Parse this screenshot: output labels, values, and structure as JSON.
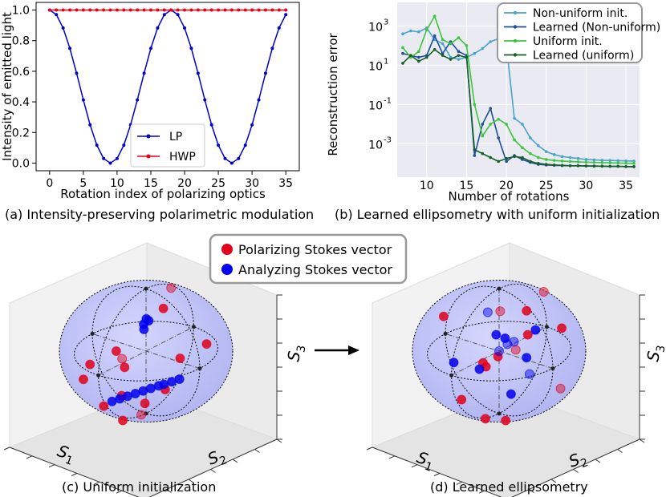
{
  "chart_data": [
    {
      "type": "line",
      "caption": "(a) Intensity-preserving polarimetric modulation",
      "xlabel": "Rotation index of polarizing optics",
      "ylabel": "Intensity of emitted light",
      "xlim": [
        -2,
        37
      ],
      "ylim": [
        -0.05,
        1.05
      ],
      "xticks": [
        0,
        5,
        10,
        15,
        20,
        25,
        30,
        35
      ],
      "yticks": [
        0.0,
        0.2,
        0.4,
        0.6,
        0.8,
        1.0
      ],
      "ytick_labels": [
        "0.0",
        "0.2",
        "0.4",
        "0.6",
        "0.8",
        "1.0"
      ],
      "legend_position": "bottom-center",
      "x": [
        0,
        1,
        2,
        3,
        4,
        5,
        6,
        7,
        8,
        9,
        10,
        11,
        12,
        13,
        14,
        15,
        16,
        17,
        18,
        19,
        20,
        21,
        22,
        23,
        24,
        25,
        26,
        27,
        28,
        29,
        30,
        31,
        32,
        33,
        34,
        35
      ],
      "series": [
        {
          "name": "LP",
          "color": "#0000cc",
          "values": [
            1.0,
            0.97,
            0.883,
            0.75,
            0.587,
            0.413,
            0.25,
            0.117,
            0.03,
            0.0,
            0.03,
            0.117,
            0.25,
            0.413,
            0.587,
            0.75,
            0.883,
            0.97,
            1.0,
            0.97,
            0.883,
            0.75,
            0.587,
            0.413,
            0.25,
            0.117,
            0.03,
            0.0,
            0.03,
            0.117,
            0.25,
            0.413,
            0.587,
            0.75,
            0.883,
            0.97
          ]
        },
        {
          "name": "HWP",
          "color": "#e8001c",
          "values": [
            1,
            1,
            1,
            1,
            1,
            1,
            1,
            1,
            1,
            1,
            1,
            1,
            1,
            1,
            1,
            1,
            1,
            1,
            1,
            1,
            1,
            1,
            1,
            1,
            1,
            1,
            1,
            1,
            1,
            1,
            1,
            1,
            1,
            1,
            1,
            1
          ]
        }
      ]
    },
    {
      "type": "line",
      "caption": "(b) Learned ellipsometry with uniform initialization",
      "xlabel": "Number of rotations",
      "ylabel": "Reconstruction error",
      "yscale": "log",
      "xlim": [
        6.3,
        36.7
      ],
      "ylim_log10": [
        -4.7,
        4.2
      ],
      "xticks": [
        10,
        15,
        20,
        25,
        30,
        35
      ],
      "yticks_log10": [
        -3,
        -1,
        1,
        3
      ],
      "ytick_labels": [
        "10",
        "10",
        "10",
        "10"
      ],
      "ytick_exponents": [
        "-3",
        "-1",
        "1",
        "3"
      ],
      "grid": true,
      "background": "#eaeaf2",
      "legend_position": "top-right",
      "x": [
        7,
        8,
        9,
        10,
        11,
        12,
        13,
        14,
        15,
        16,
        17,
        18,
        19,
        20,
        21,
        22,
        23,
        24,
        25,
        26,
        27,
        28,
        29,
        30,
        31,
        32,
        33,
        34,
        35,
        36
      ],
      "series": [
        {
          "name": "Non-uniform init.",
          "color": "#4aa3c8",
          "log10_values": [
            2.6,
            2.75,
            2.7,
            2.9,
            2.3,
            2.1,
            1.4,
            1.3,
            1.4,
            1.6,
            1.85,
            2.2,
            2.35,
            2.0,
            -1.7,
            -2.0,
            -2.7,
            -3.1,
            -3.4,
            -3.55,
            -3.65,
            -3.7,
            -3.75,
            -3.8,
            -3.82,
            -3.84,
            -3.85,
            -3.86,
            -3.87,
            -3.88
          ]
        },
        {
          "name": "Learned (Non-uniform)",
          "color": "#1f4e9a",
          "log10_values": [
            1.6,
            1.5,
            1.4,
            1.5,
            2.5,
            1.6,
            2.2,
            1.7,
            1.5,
            -3.6,
            -2.0,
            -1.2,
            -2.7,
            -3.9,
            -3.6,
            -3.8,
            -3.95,
            -4.05,
            -4.08,
            -4.1,
            -4.11,
            -4.12,
            -4.12,
            -4.13,
            -4.13,
            -4.14,
            -4.15,
            -4.15,
            -4.16,
            -4.16
          ]
        },
        {
          "name": "Uniform init.",
          "color": "#3ec43e",
          "log10_values": [
            1.9,
            1.4,
            1.7,
            2.8,
            3.5,
            2.3,
            2.1,
            2.4,
            2.0,
            -1.0,
            -2.6,
            -2.0,
            -1.75,
            -2.0,
            -2.8,
            -3.2,
            -3.5,
            -3.7,
            -3.8,
            -3.85,
            -3.88,
            -3.9,
            -3.92,
            -3.94,
            -3.95,
            -3.96,
            -3.97,
            -3.98,
            -3.99,
            -4.0
          ]
        },
        {
          "name": "Learned (uniform)",
          "color": "#165f28",
          "log10_values": [
            1.1,
            1.5,
            1.2,
            1.4,
            1.8,
            1.5,
            1.3,
            1.5,
            1.4,
            -3.3,
            -3.5,
            -3.7,
            -3.9,
            -3.75,
            -3.65,
            -3.7,
            -3.9,
            -4.0,
            -4.05,
            -4.08,
            -4.1,
            -4.12,
            -4.12,
            -4.13,
            -4.14,
            -4.14,
            -4.15,
            -4.15,
            -4.16,
            -4.17
          ]
        }
      ]
    },
    {
      "type": "scatter",
      "caption": "(c) Uniform initialization",
      "projection": "3d-sphere",
      "axis_labels": {
        "x_main": "S",
        "x_sub": "1",
        "y_main": "S",
        "y_sub": "2",
        "z_main": "S",
        "z_sub": "3"
      },
      "legend_position": "top-center",
      "series": [
        {
          "name": "Polarizing Stokes vector",
          "color": "#e0001b",
          "points": [
            [
              0.9,
              0.4,
              0.2
            ],
            [
              0.85,
              0.3,
              -0.3
            ],
            [
              0.7,
              0.6,
              -0.4
            ],
            [
              0.6,
              0.1,
              -0.85
            ],
            [
              0.55,
              -0.3,
              -0.75
            ],
            [
              0.75,
              -0.5,
              -0.3
            ],
            [
              -0.2,
              0.95,
              0.3
            ],
            [
              0.3,
              0.9,
              0.25
            ],
            [
              0.2,
              0.5,
              0.9
            ],
            [
              -0.3,
              0.2,
              0.95
            ],
            [
              0.4,
              -0.2,
              0.1
            ],
            [
              -0.4,
              -0.8,
              -0.5
            ],
            [
              0.1,
              0.0,
              -0.98
            ],
            [
              0.95,
              -0.2,
              0.1
            ],
            [
              0.5,
              0.8,
              -0.2
            ]
          ]
        },
        {
          "name": "Analyzing Stokes vector",
          "color": "#0000ee",
          "points": [
            [
              0.05,
              0.05,
              0.55
            ],
            [
              0.0,
              0.05,
              0.5
            ],
            [
              0.05,
              0.0,
              0.45
            ],
            [
              0.1,
              0.05,
              0.4
            ],
            [
              0.3,
              0.5,
              -0.3
            ],
            [
              0.35,
              0.4,
              -0.35
            ],
            [
              0.4,
              0.3,
              -0.4
            ],
            [
              0.45,
              0.2,
              -0.45
            ],
            [
              0.5,
              0.1,
              -0.5
            ],
            [
              0.55,
              0.0,
              -0.55
            ],
            [
              0.6,
              -0.1,
              -0.6
            ],
            [
              0.3,
              0.6,
              -0.25
            ],
            [
              0.25,
              0.7,
              -0.2
            ],
            [
              0.2,
              0.8,
              -0.15
            ]
          ]
        }
      ]
    },
    {
      "type": "scatter",
      "caption": "(d) Learned ellipsometry",
      "projection": "3d-sphere",
      "axis_labels": {
        "x_main": "S",
        "x_sub": "1",
        "y_main": "S",
        "y_sub": "2",
        "z_main": "S",
        "z_sub": "3"
      },
      "series": [
        {
          "name": "Polarizing Stokes vector",
          "color": "#e0001b",
          "points": [
            [
              0.9,
              0.5,
              0.3
            ],
            [
              -0.3,
              0.9,
              0.5
            ],
            [
              0.1,
              0.6,
              0.85
            ],
            [
              -0.6,
              0.3,
              0.8
            ],
            [
              -0.8,
              -0.4,
              -0.4
            ],
            [
              0.2,
              0.3,
              -0.95
            ],
            [
              0.4,
              0.1,
              -0.9
            ],
            [
              0.7,
              0.6,
              0.35
            ],
            [
              0.9,
              0.1,
              -0.4
            ],
            [
              0.5,
              0.2,
              0.0
            ],
            [
              -0.7,
              -0.6,
              0.2
            ],
            [
              0.3,
              0.8,
              0.6
            ],
            [
              -0.5,
              0.7,
              -0.6
            ],
            [
              0.6,
              -0.5,
              0.65
            ]
          ]
        },
        {
          "name": "Analyzing Stokes vector",
          "color": "#0000ee",
          "points": [
            [
              0.1,
              0.2,
              0.3
            ],
            [
              0.0,
              0.0,
              0.0
            ],
            [
              -0.2,
              0.1,
              0.1
            ],
            [
              0.3,
              -0.1,
              -0.2
            ],
            [
              -0.3,
              0.3,
              -0.4
            ],
            [
              0.2,
              0.4,
              -0.5
            ],
            [
              -0.1,
              -0.3,
              0.5
            ],
            [
              0.4,
              0.3,
              0.5
            ],
            [
              0.1,
              0.6,
              0.1
            ],
            [
              -0.4,
              -0.2,
              -0.1
            ],
            [
              0.5,
              -0.4,
              -0.1
            ],
            [
              -0.2,
              0.5,
              0.4
            ]
          ]
        }
      ]
    }
  ]
}
